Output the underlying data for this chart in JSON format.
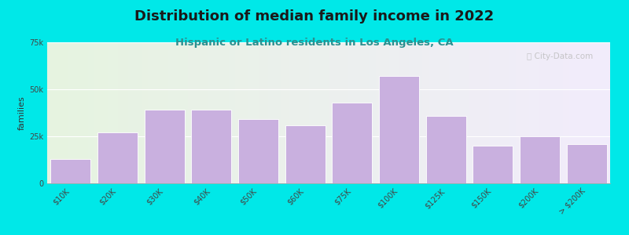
{
  "title": "Distribution of median family income in 2022",
  "subtitle": "Hispanic or Latino residents in Los Angeles, CA",
  "categories": [
    "$10K",
    "$20K",
    "$30K",
    "$40K",
    "$50K",
    "$60K",
    "$75K",
    "$100K",
    "$125K",
    "$150K",
    "$200K",
    "> $200K"
  ],
  "values": [
    13000,
    27000,
    39000,
    39000,
    34000,
    31000,
    43000,
    57000,
    36000,
    20000,
    25000,
    21000
  ],
  "bar_color": "#c9b0df",
  "bar_edge_color": "#ffffff",
  "background_outer": "#00e8e8",
  "background_inner_left": "#e6f4e0",
  "background_inner_right": "#f0eaf8",
  "title_color": "#1a1a1a",
  "subtitle_color": "#2a9090",
  "ylabel": "families",
  "ylabel_color": "#333333",
  "ylim": [
    0,
    75000
  ],
  "yticks": [
    0,
    25000,
    50000,
    75000
  ],
  "ytick_labels": [
    "0",
    "25k",
    "50k",
    "75k"
  ],
  "watermark": "ⓘ City-Data.com",
  "title_fontsize": 13,
  "subtitle_fontsize": 9.5,
  "ylabel_fontsize": 8,
  "tick_fontsize": 7
}
